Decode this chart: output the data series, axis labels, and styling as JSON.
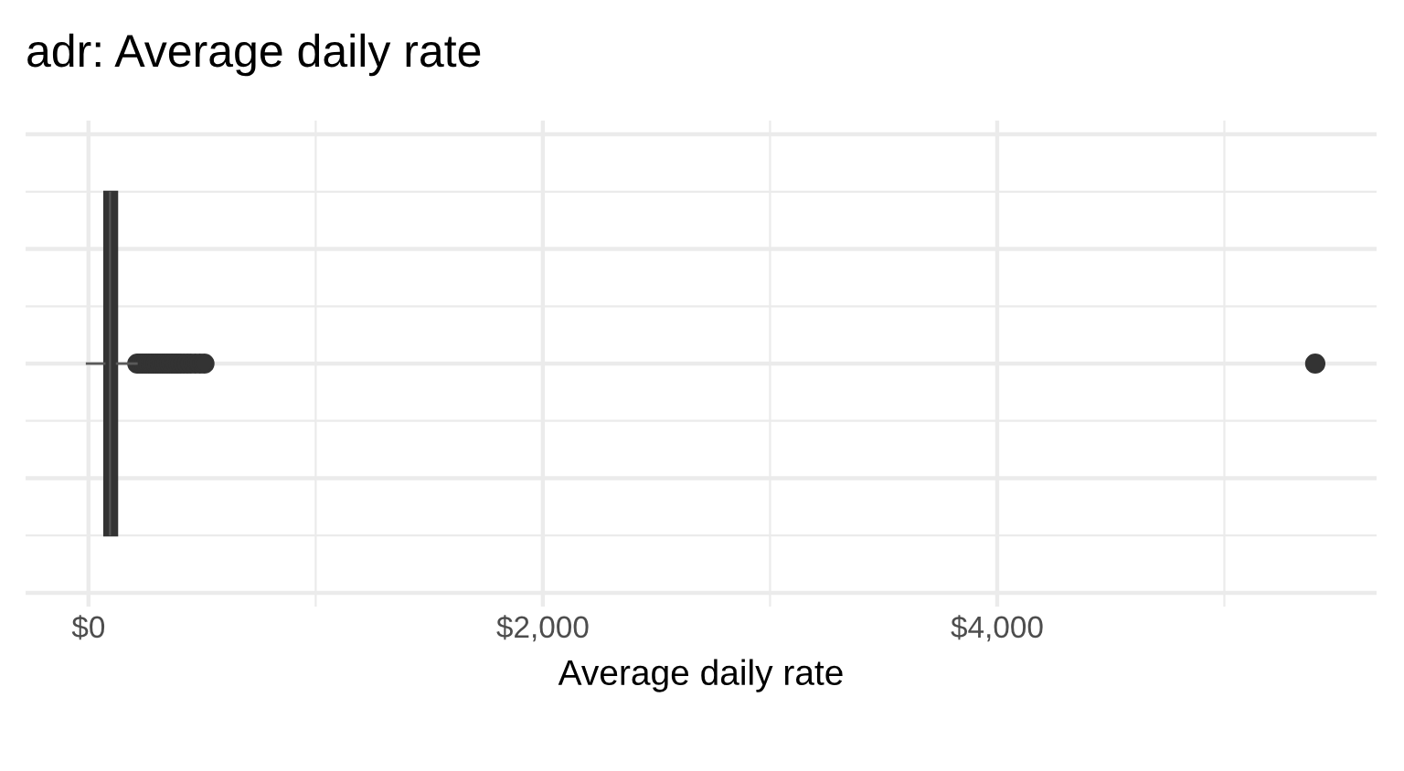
{
  "chart_data": {
    "type": "box",
    "orientation": "horizontal",
    "title": "adr: Average daily rate",
    "xlabel": "Average daily rate",
    "categories": [
      null
    ],
    "boxes": [
      {
        "low": -6.38,
        "q1": 69.3,
        "median": 94.6,
        "q3": 126,
        "high": 211,
        "outliers": [
          215,
          225,
          235,
          245,
          255,
          265,
          275,
          285,
          295,
          305,
          315,
          325,
          335,
          345,
          355,
          365,
          375,
          385,
          395,
          405,
          420,
          435,
          450,
          470,
          490,
          510,
          5400
        ]
      }
    ],
    "color": "#333333",
    "xlim": [
      -277,
      5670
    ],
    "xticks": [
      {
        "value": 0,
        "label": "$0"
      },
      {
        "value": 2000,
        "label": "$2,000"
      },
      {
        "value": 4000,
        "label": "$4,000"
      }
    ],
    "grid": true,
    "tick_labels": "x"
  }
}
